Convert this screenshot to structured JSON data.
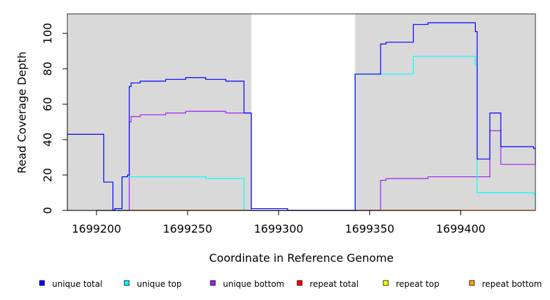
{
  "chart_data": {
    "type": "line",
    "title": "",
    "xlabel": "Coordinate in Reference Genome",
    "ylabel": "Read Coverage Depth",
    "xlim": [
      1699184,
      1699441
    ],
    "ylim": [
      0,
      111
    ],
    "x_ticks": [
      {
        "value": 1699200,
        "label": "1699200"
      },
      {
        "value": 1699250,
        "label": "1699250"
      },
      {
        "value": 1699300,
        "label": "1699300"
      },
      {
        "value": 1699350,
        "label": "1699350"
      },
      {
        "value": 1699400,
        "label": "1699400"
      }
    ],
    "y_ticks": [
      {
        "value": 0,
        "label": "0"
      },
      {
        "value": 20,
        "label": "20"
      },
      {
        "value": 40,
        "label": "40"
      },
      {
        "value": 60,
        "label": "60"
      },
      {
        "value": 80,
        "label": "80"
      },
      {
        "value": 100,
        "label": "100"
      }
    ],
    "shaded_regions": [
      {
        "start": 1699184,
        "end": 1699285
      },
      {
        "start": 1699342,
        "end": 1699441
      }
    ],
    "shade_color": "#d9d9d9",
    "grid": false,
    "legend_position": "bottom",
    "series": [
      {
        "name": "unique total",
        "color": "#0000ff",
        "points": [
          [
            1699184,
            43
          ],
          [
            1699204,
            43
          ],
          [
            1699204,
            16
          ],
          [
            1699209,
            16
          ],
          [
            1699209,
            0
          ],
          [
            1699210,
            0
          ],
          [
            1699210,
            1
          ],
          [
            1699214,
            1
          ],
          [
            1699214,
            19
          ],
          [
            1699217,
            19
          ],
          [
            1699217,
            20
          ],
          [
            1699218,
            20
          ],
          [
            1699218,
            70
          ],
          [
            1699219,
            70
          ],
          [
            1699219,
            72
          ],
          [
            1699224,
            72
          ],
          [
            1699224,
            73
          ],
          [
            1699238,
            73
          ],
          [
            1699238,
            74
          ],
          [
            1699249,
            74
          ],
          [
            1699249,
            75
          ],
          [
            1699260,
            75
          ],
          [
            1699260,
            74
          ],
          [
            1699271,
            74
          ],
          [
            1699271,
            73
          ],
          [
            1699281,
            73
          ],
          [
            1699281,
            55
          ],
          [
            1699285,
            55
          ],
          [
            1699285,
            1
          ],
          [
            1699290,
            1
          ],
          [
            1699305,
            1
          ],
          [
            1699305,
            0
          ],
          [
            1699342,
            0
          ],
          [
            1699342,
            77
          ],
          [
            1699356,
            77
          ],
          [
            1699356,
            94
          ],
          [
            1699359,
            94
          ],
          [
            1699359,
            95
          ],
          [
            1699374,
            95
          ],
          [
            1699374,
            105
          ],
          [
            1699382,
            105
          ],
          [
            1699382,
            106
          ],
          [
            1699408,
            106
          ],
          [
            1699408,
            101
          ],
          [
            1699409,
            101
          ],
          [
            1699409,
            29
          ],
          [
            1699416,
            29
          ],
          [
            1699416,
            55
          ],
          [
            1699422,
            55
          ],
          [
            1699422,
            36
          ],
          [
            1699440,
            36
          ],
          [
            1699440,
            35
          ],
          [
            1699441,
            35
          ],
          [
            1699441,
            26
          ]
        ]
      },
      {
        "name": "unique top",
        "color": "#00ffff",
        "points": [
          [
            1699184,
            0
          ],
          [
            1699214,
            0
          ],
          [
            1699214,
            19
          ],
          [
            1699260,
            19
          ],
          [
            1699260,
            18
          ],
          [
            1699281,
            18
          ],
          [
            1699281,
            0
          ],
          [
            1699342,
            0
          ],
          [
            1699342,
            77
          ],
          [
            1699374,
            77
          ],
          [
            1699374,
            87
          ],
          [
            1699408,
            87
          ],
          [
            1699408,
            82
          ],
          [
            1699409,
            82
          ],
          [
            1699409,
            10
          ],
          [
            1699440,
            10
          ],
          [
            1699440,
            9
          ],
          [
            1699441,
            9
          ],
          [
            1699441,
            0
          ]
        ]
      },
      {
        "name": "unique bottom",
        "color": "#a020f0",
        "points": [
          [
            1699184,
            0
          ],
          [
            1699218,
            0
          ],
          [
            1699218,
            50
          ],
          [
            1699219,
            50
          ],
          [
            1699219,
            53
          ],
          [
            1699224,
            53
          ],
          [
            1699224,
            54
          ],
          [
            1699238,
            54
          ],
          [
            1699238,
            55
          ],
          [
            1699249,
            55
          ],
          [
            1699249,
            56
          ],
          [
            1699271,
            56
          ],
          [
            1699271,
            55
          ],
          [
            1699285,
            55
          ],
          [
            1699285,
            0
          ],
          [
            1699356,
            0
          ],
          [
            1699356,
            17
          ],
          [
            1699359,
            17
          ],
          [
            1699359,
            18
          ],
          [
            1699382,
            18
          ],
          [
            1699382,
            19
          ],
          [
            1699416,
            19
          ],
          [
            1699416,
            45
          ],
          [
            1699422,
            45
          ],
          [
            1699422,
            26
          ],
          [
            1699441,
            26
          ]
        ]
      },
      {
        "name": "repeat total",
        "color": "#ff0000",
        "points": [
          [
            1699184,
            0
          ],
          [
            1699441,
            0
          ]
        ]
      },
      {
        "name": "repeat top",
        "color": "#ffff00",
        "points": [
          [
            1699184,
            0
          ],
          [
            1699441,
            0
          ]
        ]
      },
      {
        "name": "repeat bottom",
        "color": "#ffa500",
        "points": [
          [
            1699184,
            0
          ],
          [
            1699441,
            0
          ]
        ]
      }
    ]
  }
}
